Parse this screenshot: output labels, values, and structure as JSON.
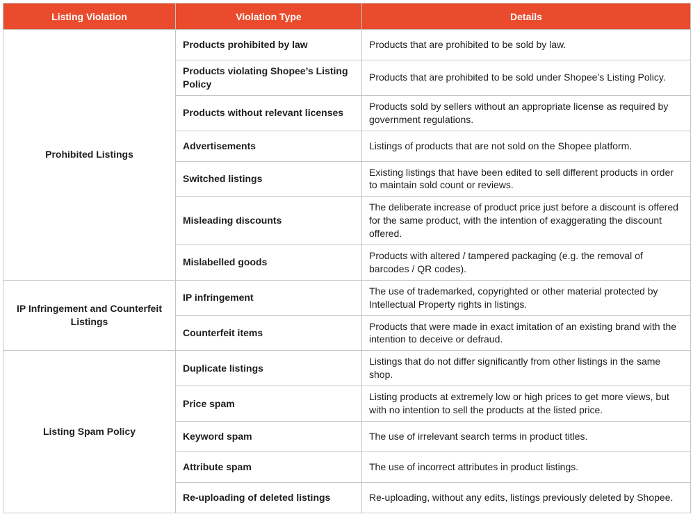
{
  "colors": {
    "header_bg": "#EA4B2C",
    "header_text": "#FFFFFF",
    "border": "#C5C5C5",
    "body_text": "#1E1E1E"
  },
  "table": {
    "headers": [
      "Listing Violation",
      "Violation Type",
      "Details"
    ],
    "sections": [
      {
        "category": "Prohibited Listings",
        "rows": [
          {
            "type": "Products prohibited by law",
            "details": "Products that are prohibited to be sold by law."
          },
          {
            "type": "Products violating Shopee’s Listing Policy",
            "details": "Products that are prohibited to be sold under Shopee’s Listing Policy."
          },
          {
            "type": "Products without relevant licenses",
            "details": "Products sold by sellers without an appropriate license as required by government regulations."
          },
          {
            "type": "Advertisements",
            "details": "Listings of products that are not sold on the Shopee platform."
          },
          {
            "type": "Switched listings",
            "details": "Existing listings that have been edited to sell different products in order to maintain sold count or reviews."
          },
          {
            "type": "Misleading discounts",
            "details": "The deliberate increase of product price just before a discount is offered for the same product, with the intention of exaggerating the discount offered."
          },
          {
            "type": "Mislabelled goods",
            "details": "Products with altered / tampered packaging (e.g. the removal of barcodes / QR codes)."
          }
        ]
      },
      {
        "category": "IP Infringement and Counterfeit Listings",
        "rows": [
          {
            "type": "IP infringement",
            "details": "The use of trademarked, copyrighted or other material protected by Intellectual Property rights in listings."
          },
          {
            "type": "Counterfeit items",
            "details": "Products that were made in exact imitation of an existing brand with the intention to deceive or defraud."
          }
        ]
      },
      {
        "category": "Listing Spam Policy",
        "rows": [
          {
            "type": "Duplicate listings",
            "details": "Listings that do not differ significantly from other listings in the same shop."
          },
          {
            "type": "Price spam",
            "details": "Listing products at extremely low or high prices to get more views, but with no intention to sell the products at the listed price."
          },
          {
            "type": "Keyword spam",
            "details": "The use of irrelevant search terms in product titles."
          },
          {
            "type": "Attribute spam",
            "details": "The use of incorrect attributes in product listings."
          },
          {
            "type": "Re-uploading of deleted listings",
            "details": "Re-uploading, without any edits, listings previously deleted by Shopee."
          }
        ]
      }
    ]
  }
}
